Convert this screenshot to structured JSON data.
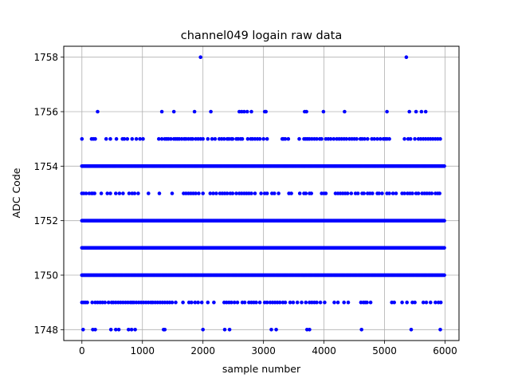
{
  "chart_data": {
    "type": "scatter",
    "title": "channel049 logain raw data",
    "xlabel": "sample number",
    "ylabel": "ADC Code",
    "xlim": [
      -300,
      6230
    ],
    "ylim": [
      1747.6,
      1758.4
    ],
    "x_ticks": [
      0,
      1000,
      2000,
      3000,
      4000,
      5000,
      6000
    ],
    "y_ticks": [
      1748,
      1750,
      1752,
      1754,
      1756,
      1758
    ],
    "x_tick_labels": [
      "0",
      "1000",
      "2000",
      "3000",
      "4000",
      "5000",
      "6000"
    ],
    "y_tick_labels": [
      "1748",
      "1750",
      "1752",
      "1754",
      "1756",
      "1758"
    ],
    "grid": true,
    "legend": "none",
    "marker_color": "#0000ff",
    "n_samples": 6000,
    "series": [
      {
        "values_by_level": [
          {
            "y": 1758,
            "x": [
              1960,
              5360
            ]
          },
          {
            "y": 1756,
            "x": [
              260,
              1320,
              1520,
              1860,
              2130,
              2600,
              2640,
              2680,
              2730,
              2800,
              3020,
              3040,
              3680,
              3710,
              3990,
              4340,
              5040,
              5410,
              5520,
              5610,
              5680
            ]
          },
          {
            "y": 1755,
            "x": [
              0,
              160,
              190,
              220,
              400,
              470,
              570,
              670,
              700,
              750,
              830,
              900,
              960,
              1010,
              1270,
              1320,
              1370,
              1400,
              1430,
              1470,
              1520,
              1550,
              1580,
              1610,
              1650,
              1690,
              1720,
              1760,
              1800,
              1830,
              1880,
              1920,
              1960,
              2000,
              2080,
              2150,
              2200,
              2270,
              2310,
              2350,
              2400,
              2430,
              2470,
              2490,
              2550,
              2580,
              2620,
              2650,
              2740,
              2790,
              2820,
              2860,
              2900,
              2940,
              3000,
              3060,
              3310,
              3330,
              3360,
              3410,
              3590,
              3670,
              3700,
              3730,
              3760,
              3800,
              3840,
              3880,
              3930,
              3960,
              4030,
              4070,
              4110,
              4160,
              4210,
              4250,
              4290,
              4330,
              4370,
              4420,
              4460,
              4500,
              4540,
              4600,
              4630,
              4670,
              4720,
              4790,
              4830,
              4880,
              4930,
              4980,
              5010,
              5040,
              5080,
              5330,
              5390,
              5430,
              5500,
              5560,
              5600,
              5640,
              5680,
              5720,
              5760,
              5800,
              5840,
              5880,
              5920
            ]
          },
          {
            "y": 1753,
            "x": [
              0,
              30,
              70,
              120,
              160,
              180,
              210,
              320,
              420,
              470,
              560,
              620,
              680,
              780,
              830,
              870,
              930,
              1100,
              1280,
              1490,
              1680,
              1720,
              1760,
              1800,
              1840,
              1880,
              1930,
              2000,
              2120,
              2170,
              2220,
              2280,
              2320,
              2360,
              2400,
              2450,
              2490,
              2550,
              2600,
              2640,
              2680,
              2720,
              2760,
              2800,
              2860,
              2960,
              3020,
              3060,
              3140,
              3180,
              3250,
              3420,
              3460,
              3600,
              3670,
              3700,
              3760,
              3790,
              3960,
              4000,
              4030,
              4190,
              4230,
              4270,
              4310,
              4350,
              4390,
              4450,
              4520,
              4560,
              4630,
              4660,
              4720,
              4760,
              4800,
              4880,
              4910,
              4960,
              5040,
              5080,
              5140,
              5190,
              5290,
              5330,
              5380,
              5420,
              5460,
              5520,
              5560,
              5620,
              5660,
              5700,
              5740,
              5780,
              5840,
              5880,
              5910
            ]
          },
          {
            "y": 1749,
            "x": [
              0,
              30,
              60,
              90,
              170,
              220,
              260,
              300,
              340,
              380,
              440,
              490,
              520,
              560,
              600,
              640,
              680,
              720,
              760,
              800,
              830,
              860,
              900,
              940,
              980,
              1020,
              1060,
              1100,
              1140,
              1170,
              1210,
              1250,
              1290,
              1330,
              1370,
              1410,
              1450,
              1490,
              1550,
              1670,
              1770,
              1810,
              1870,
              1920,
              1980,
              2080,
              2180,
              2350,
              2390,
              2430,
              2470,
              2520,
              2570,
              2650,
              2690,
              2760,
              2800,
              2840,
              2880,
              2940,
              3020,
              3060,
              3110,
              3150,
              3190,
              3230,
              3270,
              3320,
              3360,
              3440,
              3490,
              3560,
              3630,
              3700,
              3760,
              3800,
              3840,
              3880,
              3940,
              4010,
              4170,
              4230,
              4330,
              4400,
              4610,
              4650,
              4680,
              4710,
              4770,
              5120,
              5160,
              5290,
              5370,
              5460,
              5500,
              5640,
              5690,
              5760,
              5840,
              5890,
              5930
            ]
          },
          {
            "y": 1748,
            "x": [
              20,
              180,
              220,
              480,
              560,
              610,
              770,
              820,
              880,
              1350,
              1370,
              2000,
              2360,
              2440,
              3130,
              3210,
              3720,
              3760,
              4620,
              5440,
              5920
            ]
          }
        ],
        "dense_levels": [
          1750,
          1751,
          1752,
          1754
        ]
      }
    ]
  }
}
